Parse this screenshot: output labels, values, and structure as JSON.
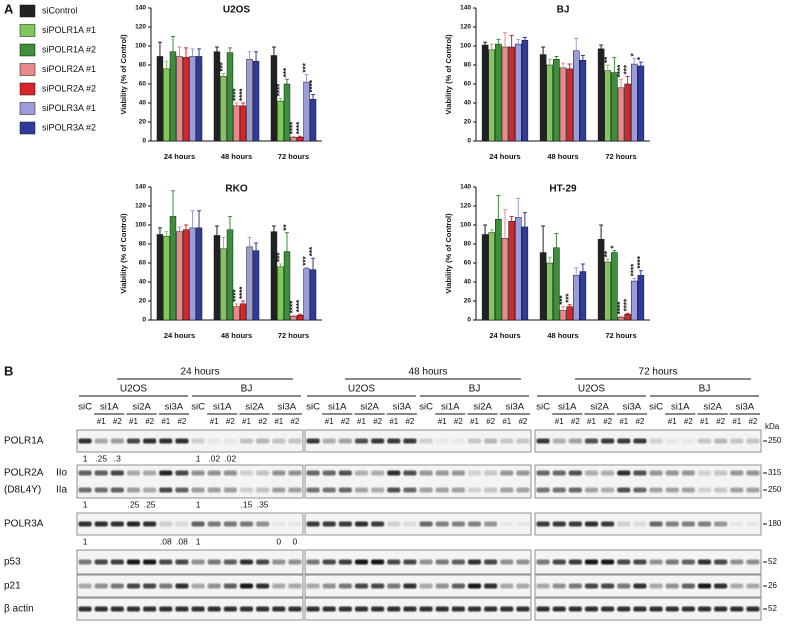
{
  "panel_labels": [
    "A",
    "B"
  ],
  "chart_data": [
    {
      "type": "bar",
      "title": "U2OS",
      "ylabel": "Viability (% of Control)",
      "categories": [
        "24 hours",
        "48 hours",
        "72 hours"
      ],
      "ylim": [
        0,
        140
      ],
      "yticks": [
        0,
        20,
        40,
        60,
        80,
        100,
        120,
        140
      ],
      "series": [
        {
          "name": "siControl",
          "color": "#222222",
          "values": [
            89,
            94,
            90
          ],
          "errors": [
            15,
            5,
            9
          ],
          "annotations": [
            null,
            null,
            null
          ]
        },
        {
          "name": "siPOLR1A #1",
          "color": "#7ec85e",
          "values": [
            76,
            68,
            42
          ],
          "errors": [
            8,
            3,
            3
          ],
          "annotations": [
            null,
            "***",
            "****"
          ]
        },
        {
          "name": "siPOLR1A #2",
          "color": "#3e8e3e",
          "values": [
            94,
            93,
            60
          ],
          "errors": [
            16,
            5,
            5
          ],
          "annotations": [
            null,
            null,
            "***"
          ]
        },
        {
          "name": "siPOLR2A #1",
          "color": "#e68a8a",
          "values": [
            89,
            37,
            4
          ],
          "errors": [
            10,
            3,
            1
          ],
          "annotations": [
            null,
            "****",
            "****"
          ]
        },
        {
          "name": "siPOLR2A #2",
          "color": "#d8242a",
          "values": [
            88,
            37,
            4
          ],
          "errors": [
            10,
            3,
            1
          ],
          "annotations": [
            null,
            "****",
            "****"
          ]
        },
        {
          "name": "siPOLR3A #1",
          "color": "#9c9cd8",
          "values": [
            89,
            86,
            62
          ],
          "errors": [
            8,
            8,
            8
          ],
          "annotations": [
            null,
            null,
            "***"
          ]
        },
        {
          "name": "siPOLR3A #2",
          "color": "#2f3c9a",
          "values": [
            89,
            84,
            44
          ],
          "errors": [
            8,
            10,
            5
          ],
          "annotations": [
            null,
            null,
            "****"
          ]
        }
      ]
    },
    {
      "type": "bar",
      "title": "BJ",
      "ylabel": "Viability (% of Control)",
      "categories": [
        "24 hours",
        "48 hours",
        "72 hours"
      ],
      "ylim": [
        0,
        140
      ],
      "yticks": [
        0,
        20,
        40,
        60,
        80,
        100,
        120,
        140
      ],
      "series": [
        {
          "name": "siControl",
          "color": "#222222",
          "values": [
            101,
            91,
            97
          ],
          "errors": [
            3,
            8,
            4
          ],
          "annotations": [
            null,
            null,
            null
          ]
        },
        {
          "name": "siPOLR1A #1",
          "color": "#7ec85e",
          "values": [
            96,
            80,
            74
          ],
          "errors": [
            6,
            6,
            6
          ],
          "annotations": [
            null,
            null,
            "**"
          ]
        },
        {
          "name": "siPOLR1A #2",
          "color": "#3e8e3e",
          "values": [
            102,
            86,
            72
          ],
          "errors": [
            5,
            3,
            16
          ],
          "annotations": [
            null,
            null,
            null
          ]
        },
        {
          "name": "siPOLR2A #1",
          "color": "#e68a8a",
          "values": [
            99,
            77,
            56
          ],
          "errors": [
            15,
            5,
            9
          ],
          "annotations": [
            null,
            null,
            "****"
          ]
        },
        {
          "name": "siPOLR2A #2",
          "color": "#d8242a",
          "values": [
            99,
            76,
            60
          ],
          "errors": [
            12,
            5,
            8
          ],
          "annotations": [
            null,
            null,
            "***"
          ]
        },
        {
          "name": "siPOLR3A #1",
          "color": "#9c9cd8",
          "values": [
            102,
            95,
            81
          ],
          "errors": [
            5,
            13,
            6
          ],
          "annotations": [
            null,
            null,
            "*"
          ]
        },
        {
          "name": "siPOLR3A #2",
          "color": "#2f3c9a",
          "values": [
            106,
            85,
            79
          ],
          "errors": [
            3,
            5,
            4
          ],
          "annotations": [
            null,
            null,
            "*"
          ]
        }
      ]
    },
    {
      "type": "bar",
      "title": "RKO",
      "ylabel": "Viability (% of Control)",
      "categories": [
        "24 hours",
        "48 hours",
        "72 hours"
      ],
      "ylim": [
        0,
        140
      ],
      "yticks": [
        0,
        20,
        40,
        60,
        80,
        100,
        120,
        140
      ],
      "series": [
        {
          "name": "siControl",
          "color": "#222222",
          "values": [
            90,
            89,
            93
          ],
          "errors": [
            7,
            10,
            6
          ],
          "annotations": [
            null,
            null,
            null
          ]
        },
        {
          "name": "siPOLR1A #1",
          "color": "#7ec85e",
          "values": [
            88,
            75,
            56
          ],
          "errors": [
            5,
            12,
            3
          ],
          "annotations": [
            null,
            null,
            "***"
          ]
        },
        {
          "name": "siPOLR1A #2",
          "color": "#3e8e3e",
          "values": [
            109,
            95,
            72
          ],
          "errors": [
            27,
            14,
            20
          ],
          "annotations": [
            null,
            null,
            "**"
          ]
        },
        {
          "name": "siPOLR2A #1",
          "color": "#e68a8a",
          "values": [
            93,
            14,
            4
          ],
          "errors": [
            5,
            3,
            1
          ],
          "annotations": [
            null,
            "****",
            "****"
          ]
        },
        {
          "name": "siPOLR2A #2",
          "color": "#d8242a",
          "values": [
            95,
            17,
            5
          ],
          "errors": [
            5,
            3,
            1
          ],
          "annotations": [
            null,
            "****",
            "****"
          ]
        },
        {
          "name": "siPOLR3A #1",
          "color": "#9c9cd8",
          "values": [
            97,
            77,
            54
          ],
          "errors": [
            18,
            10,
            1
          ],
          "annotations": [
            null,
            null,
            "***"
          ]
        },
        {
          "name": "siPOLR3A #2",
          "color": "#2f3c9a",
          "values": [
            97,
            73,
            53
          ],
          "errors": [
            18,
            8,
            12
          ],
          "annotations": [
            null,
            null,
            "***"
          ]
        }
      ]
    },
    {
      "type": "bar",
      "title": "HT-29",
      "ylabel": "Viability (% of Control)",
      "categories": [
        "24 hours",
        "48 hours",
        "72 hours"
      ],
      "ylim": [
        0,
        140
      ],
      "yticks": [
        0,
        20,
        40,
        60,
        80,
        100,
        120,
        140
      ],
      "series": [
        {
          "name": "siControl",
          "color": "#222222",
          "values": [
            90,
            71,
            85
          ],
          "errors": [
            10,
            28,
            15
          ],
          "annotations": [
            null,
            null,
            null
          ]
        },
        {
          "name": "siPOLR1A #1",
          "color": "#7ec85e",
          "values": [
            92,
            60,
            61
          ],
          "errors": [
            3,
            6,
            3
          ],
          "annotations": [
            null,
            null,
            "**"
          ]
        },
        {
          "name": "siPOLR1A #2",
          "color": "#3e8e3e",
          "values": [
            106,
            76,
            71
          ],
          "errors": [
            25,
            15,
            2
          ],
          "annotations": [
            null,
            null,
            "*"
          ]
        },
        {
          "name": "siPOLR2A #1",
          "color": "#e68a8a",
          "values": [
            86,
            10,
            3
          ],
          "errors": [
            30,
            4,
            1
          ],
          "annotations": [
            null,
            "***",
            "****"
          ]
        },
        {
          "name": "siPOLR2A #2",
          "color": "#d8242a",
          "values": [
            104,
            14,
            6
          ],
          "errors": [
            5,
            2,
            1
          ],
          "annotations": [
            null,
            "***",
            "****"
          ]
        },
        {
          "name": "siPOLR3A #1",
          "color": "#9c9cd8",
          "values": [
            108,
            47,
            41
          ],
          "errors": [
            20,
            8,
            3
          ],
          "annotations": [
            null,
            null,
            "****"
          ]
        },
        {
          "name": "siPOLR3A #2",
          "color": "#2f3c9a",
          "values": [
            98,
            51,
            47
          ],
          "errors": [
            15,
            8,
            5
          ],
          "annotations": [
            null,
            null,
            "****"
          ]
        }
      ]
    }
  ],
  "blot": {
    "timepoints": [
      "24 hours",
      "48 hours",
      "72 hours"
    ],
    "cell_lines": [
      "U2OS",
      "BJ"
    ],
    "groups": [
      "siC",
      "si1A",
      "si2A",
      "si3A"
    ],
    "sublanes": [
      "#1",
      "#2"
    ],
    "kda_unit": "kDa",
    "rows": [
      {
        "label": "POLR1A",
        "kda": [
          "250"
        ],
        "quant_24h": [
          "1",
          ".25",
          ".3",
          null,
          null,
          null,
          null,
          "1",
          ".02",
          ".02",
          null,
          null,
          null,
          null
        ]
      },
      {
        "label": "POLR2A",
        "sublabel": "(D8L4Y)",
        "forms": [
          "IIo",
          "IIa"
        ],
        "kda": [
          "315",
          "250"
        ],
        "quant_24h": [
          "1",
          null,
          null,
          ".25",
          ".25",
          null,
          null,
          "1",
          null,
          null,
          ".15",
          ".35",
          null,
          null
        ]
      },
      {
        "label": "POLR3A",
        "kda": [
          "180"
        ],
        "quant_24h": [
          "1",
          null,
          null,
          null,
          null,
          ".08",
          ".08",
          "1",
          null,
          null,
          null,
          null,
          "0",
          "0"
        ]
      },
      {
        "label": "p53",
        "kda": [
          "52"
        ]
      },
      {
        "label": "p21",
        "kda": [
          "26"
        ]
      },
      {
        "label": "β actin",
        "kda": [
          "52"
        ]
      }
    ]
  }
}
